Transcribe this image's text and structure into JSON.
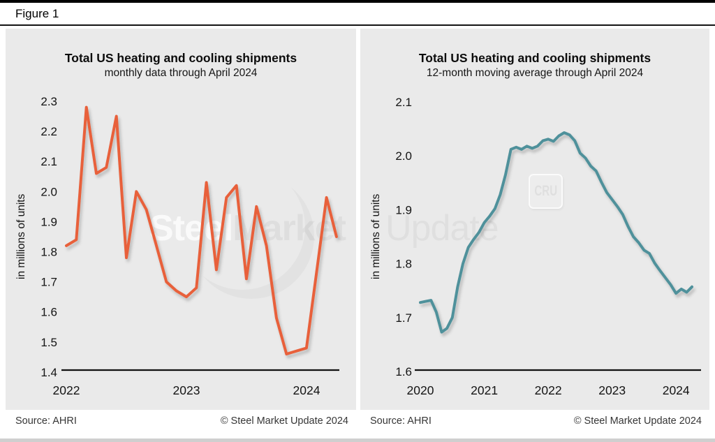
{
  "figure_label": "Figure 1",
  "panels": [
    {
      "title": "Total US heating and cooling shipments",
      "subtitle": "monthly data through April 2024",
      "y_axis_title": "in millions of units",
      "source": "Source: AHRI",
      "copyright": "© Steel Market Update 2024"
    },
    {
      "title": "Total US heating and cooling shipments",
      "subtitle": "12-month moving average through April 2024",
      "y_axis_title": "in millions of units",
      "source": "Source: AHRI",
      "copyright": "© Steel Market Update 2024"
    }
  ],
  "watermark": {
    "brand_part1": "Steel",
    "brand_part2": "Market",
    "brand_part3": "Update",
    "cru_logo": "CRU"
  },
  "chart_data": [
    {
      "type": "line",
      "title": "Total US heating and cooling shipments",
      "subtitle": "monthly data through April 2024",
      "ylabel": "in millions of units",
      "line_color": "#E8613A",
      "ylim": [
        1.4,
        2.3
      ],
      "grid": false,
      "legend": "none",
      "y_ticks": [
        "2.3",
        "2.2",
        "2.1",
        "2.0",
        "1.9",
        "1.8",
        "1.7",
        "1.6",
        "1.5",
        "1.4"
      ],
      "x_tick_labels": [
        "2022",
        "2023",
        "2024"
      ],
      "x_months": [
        "2022-01",
        "2022-02",
        "2022-03",
        "2022-04",
        "2022-05",
        "2022-06",
        "2022-07",
        "2022-08",
        "2022-09",
        "2022-10",
        "2022-11",
        "2022-12",
        "2023-01",
        "2023-02",
        "2023-03",
        "2023-04",
        "2023-05",
        "2023-06",
        "2023-07",
        "2023-08",
        "2023-09",
        "2023-10",
        "2023-11",
        "2023-12",
        "2024-01",
        "2024-02",
        "2024-03",
        "2024-04"
      ],
      "values": [
        1.82,
        1.84,
        2.28,
        2.06,
        2.08,
        2.25,
        1.78,
        2.0,
        1.94,
        1.82,
        1.7,
        1.67,
        1.65,
        1.68,
        2.03,
        1.74,
        1.98,
        2.02,
        1.71,
        1.95,
        1.82,
        1.58,
        1.46,
        1.47,
        1.48,
        1.73,
        1.98,
        1.85
      ]
    },
    {
      "type": "line",
      "title": "Total US heating and cooling shipments",
      "subtitle": "12-month moving average through April 2024",
      "ylabel": "in millions of units",
      "line_color": "#4F919B",
      "ylim": [
        1.6,
        2.1
      ],
      "grid": false,
      "legend": "none",
      "y_ticks": [
        "2.1",
        "2.0",
        "1.9",
        "1.8",
        "1.7",
        "1.6"
      ],
      "x_tick_labels": [
        "2020",
        "2021",
        "2022",
        "2023",
        "2024"
      ],
      "x_months": [
        "2020-01",
        "2020-02",
        "2020-03",
        "2020-04",
        "2020-05",
        "2020-06",
        "2020-07",
        "2020-08",
        "2020-09",
        "2020-10",
        "2020-11",
        "2020-12",
        "2021-01",
        "2021-02",
        "2021-03",
        "2021-04",
        "2021-05",
        "2021-06",
        "2021-07",
        "2021-08",
        "2021-09",
        "2021-10",
        "2021-11",
        "2021-12",
        "2022-01",
        "2022-02",
        "2022-03",
        "2022-04",
        "2022-05",
        "2022-06",
        "2022-07",
        "2022-08",
        "2022-09",
        "2022-10",
        "2022-11",
        "2022-12",
        "2023-01",
        "2023-02",
        "2023-03",
        "2023-04",
        "2023-05",
        "2023-06",
        "2023-07",
        "2023-08",
        "2023-09",
        "2023-10",
        "2023-11",
        "2023-12",
        "2024-01",
        "2024-02",
        "2024-03",
        "2024-04"
      ],
      "values": [
        1.728,
        1.73,
        1.732,
        1.71,
        1.673,
        1.68,
        1.7,
        1.757,
        1.8,
        1.83,
        1.845,
        1.858,
        1.876,
        1.888,
        1.902,
        1.928,
        1.965,
        2.012,
        2.016,
        2.012,
        2.018,
        2.014,
        2.018,
        2.028,
        2.031,
        2.027,
        2.037,
        2.043,
        2.039,
        2.028,
        2.005,
        1.996,
        1.981,
        1.972,
        1.951,
        1.932,
        1.919,
        1.906,
        1.891,
        1.869,
        1.85,
        1.839,
        1.825,
        1.819,
        1.801,
        1.787,
        1.774,
        1.761,
        1.745,
        1.753,
        1.747,
        1.757
      ]
    }
  ]
}
